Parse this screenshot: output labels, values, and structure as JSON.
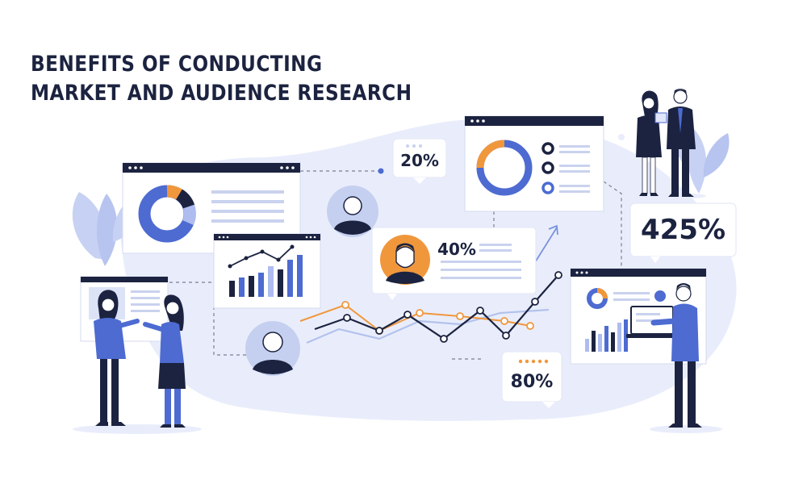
{
  "title": {
    "line1": "BENEFITS OF CONDUCTING",
    "line2": "MARKET AND AUDIENCE RESEARCH"
  },
  "stats": {
    "top_bubble": "20%",
    "middle_card": "40%",
    "right_bubble": "425%",
    "bottom_bubble": "80%"
  },
  "colors": {
    "navy": "#1c2340",
    "blue": "#4d6bd1",
    "light_blue": "#aebcf0",
    "orange": "#f0973c",
    "backdrop": "#e9edfb",
    "chart_light": "#b3c2ec"
  },
  "icons": [
    "donut-chart-icon",
    "bar-chart-icon",
    "line-chart-icon",
    "avatar-icon",
    "leaf-icon",
    "laptop-icon"
  ]
}
